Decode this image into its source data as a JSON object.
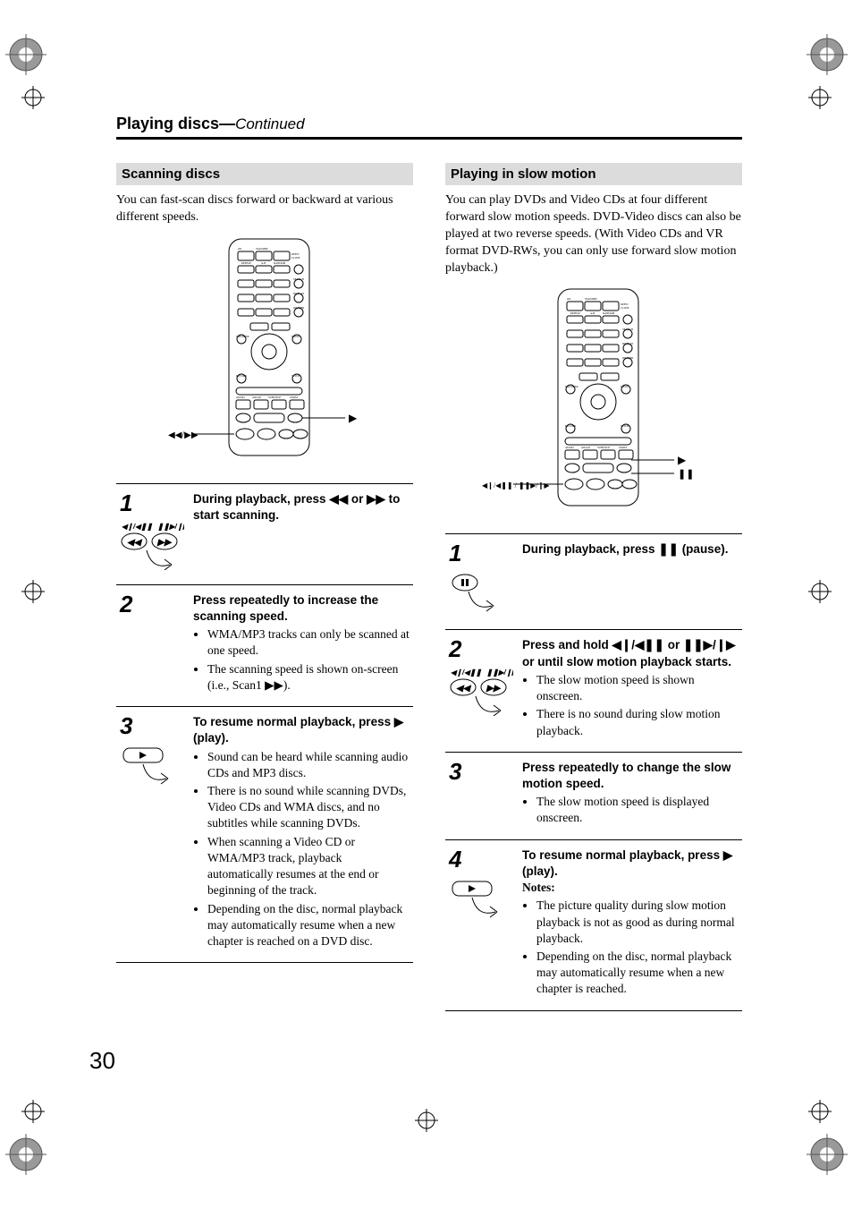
{
  "page_title_main": "Playing discs",
  "page_title_sep": "—",
  "page_title_cont": "Continued",
  "page_number": "30",
  "colors": {
    "heading_bg": "#dcdcdc",
    "text": "#000000",
    "rule": "#000000",
    "background": "#ffffff"
  },
  "left": {
    "heading": "Scanning discs",
    "intro": "You can fast-scan discs forward or backward at various different speeds.",
    "remote_labels": {
      "right": "▶",
      "bottom": "◀◀ / ▶▶"
    },
    "steps": [
      {
        "num": "1",
        "icon": "scan-buttons",
        "lead_html": "During playback, press <span class='glyph'>◀◀</span> or <span class='glyph'>▶▶</span> to start scanning.",
        "bullets": []
      },
      {
        "num": "2",
        "icon": "",
        "lead_html": "Press repeatedly to increase the scanning speed.",
        "bullets": [
          "WMA/MP3 tracks can only be scanned at one speed.",
          "The scanning speed is shown on-screen (i.e., Scan1 ▶▶)."
        ]
      },
      {
        "num": "3",
        "icon": "play-button",
        "lead_html": "To resume normal playback, press <span class='glyph'>▶</span> (play).",
        "bullets": [
          "Sound can be heard while scanning audio CDs and MP3 discs.",
          "There is no sound while scanning DVDs, Video CDs and WMA discs, and no subtitles while scanning DVDs.",
          "When scanning a Video CD or WMA/MP3 track, playback automatically resumes at the end or beginning of the track.",
          "Depending on the disc, normal playback may automatically resume when a new chapter is reached on a DVD disc."
        ]
      }
    ]
  },
  "right": {
    "heading": "Playing in slow motion",
    "intro": "You can play DVDs and Video CDs at four different forward slow motion speeds. DVD-Video discs can also be played at two reverse speeds. (With Video CDs and VR format DVD-RWs, you can only use forward slow motion playback.)",
    "remote_labels": {
      "right1": "▶",
      "right2": "❚❚",
      "bottom": "◀❙/◀❚❚ / ❚❚▶/❙▶"
    },
    "steps": [
      {
        "num": "1",
        "icon": "pause-button",
        "lead_html": "During playback, press <span class='glyph'>❚❚</span> (pause).",
        "bullets": []
      },
      {
        "num": "2",
        "icon": "scan-buttons",
        "lead_html": "Press and hold <span class='glyph'>◀❙/◀❚❚</span> or <span class='glyph'>❚❚▶/❙▶</span> or until slow motion playback starts.",
        "bullets": [
          "The slow motion speed is shown onscreen.",
          "There is no sound during slow motion playback."
        ]
      },
      {
        "num": "3",
        "icon": "",
        "lead_html": "Press repeatedly to change the slow motion speed.",
        "bullets": [
          "The slow motion speed is displayed onscreen."
        ]
      },
      {
        "num": "4",
        "icon": "play-button",
        "lead_html": "To resume normal playback, press <span class='glyph'>▶</span> (play).",
        "notes_label": "Notes:",
        "bullets": [
          "The picture quality during slow motion playback is not as good as during normal playback.",
          "Depending on the disc, normal playback may automatically resume when a new chapter is reached."
        ]
      }
    ]
  }
}
